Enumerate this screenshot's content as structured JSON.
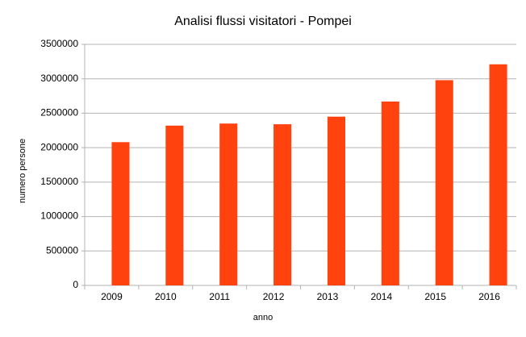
{
  "chart_data": {
    "type": "bar",
    "title": "Analisi flussi visitatori - Pompei",
    "x_label": "anno",
    "y_label": "numero persone",
    "categories": [
      "2009",
      "2010",
      "2011",
      "2012",
      "2013",
      "2014",
      "2015",
      "2016"
    ],
    "values": [
      2080000,
      2320000,
      2350000,
      2340000,
      2450000,
      2670000,
      2980000,
      3210000
    ],
    "color": "#ff420e",
    "ylim": [
      0,
      3500000
    ],
    "yticks": [
      0,
      500000,
      1000000,
      1500000,
      2000000,
      2500000,
      3000000,
      3500000
    ],
    "grid": true
  }
}
